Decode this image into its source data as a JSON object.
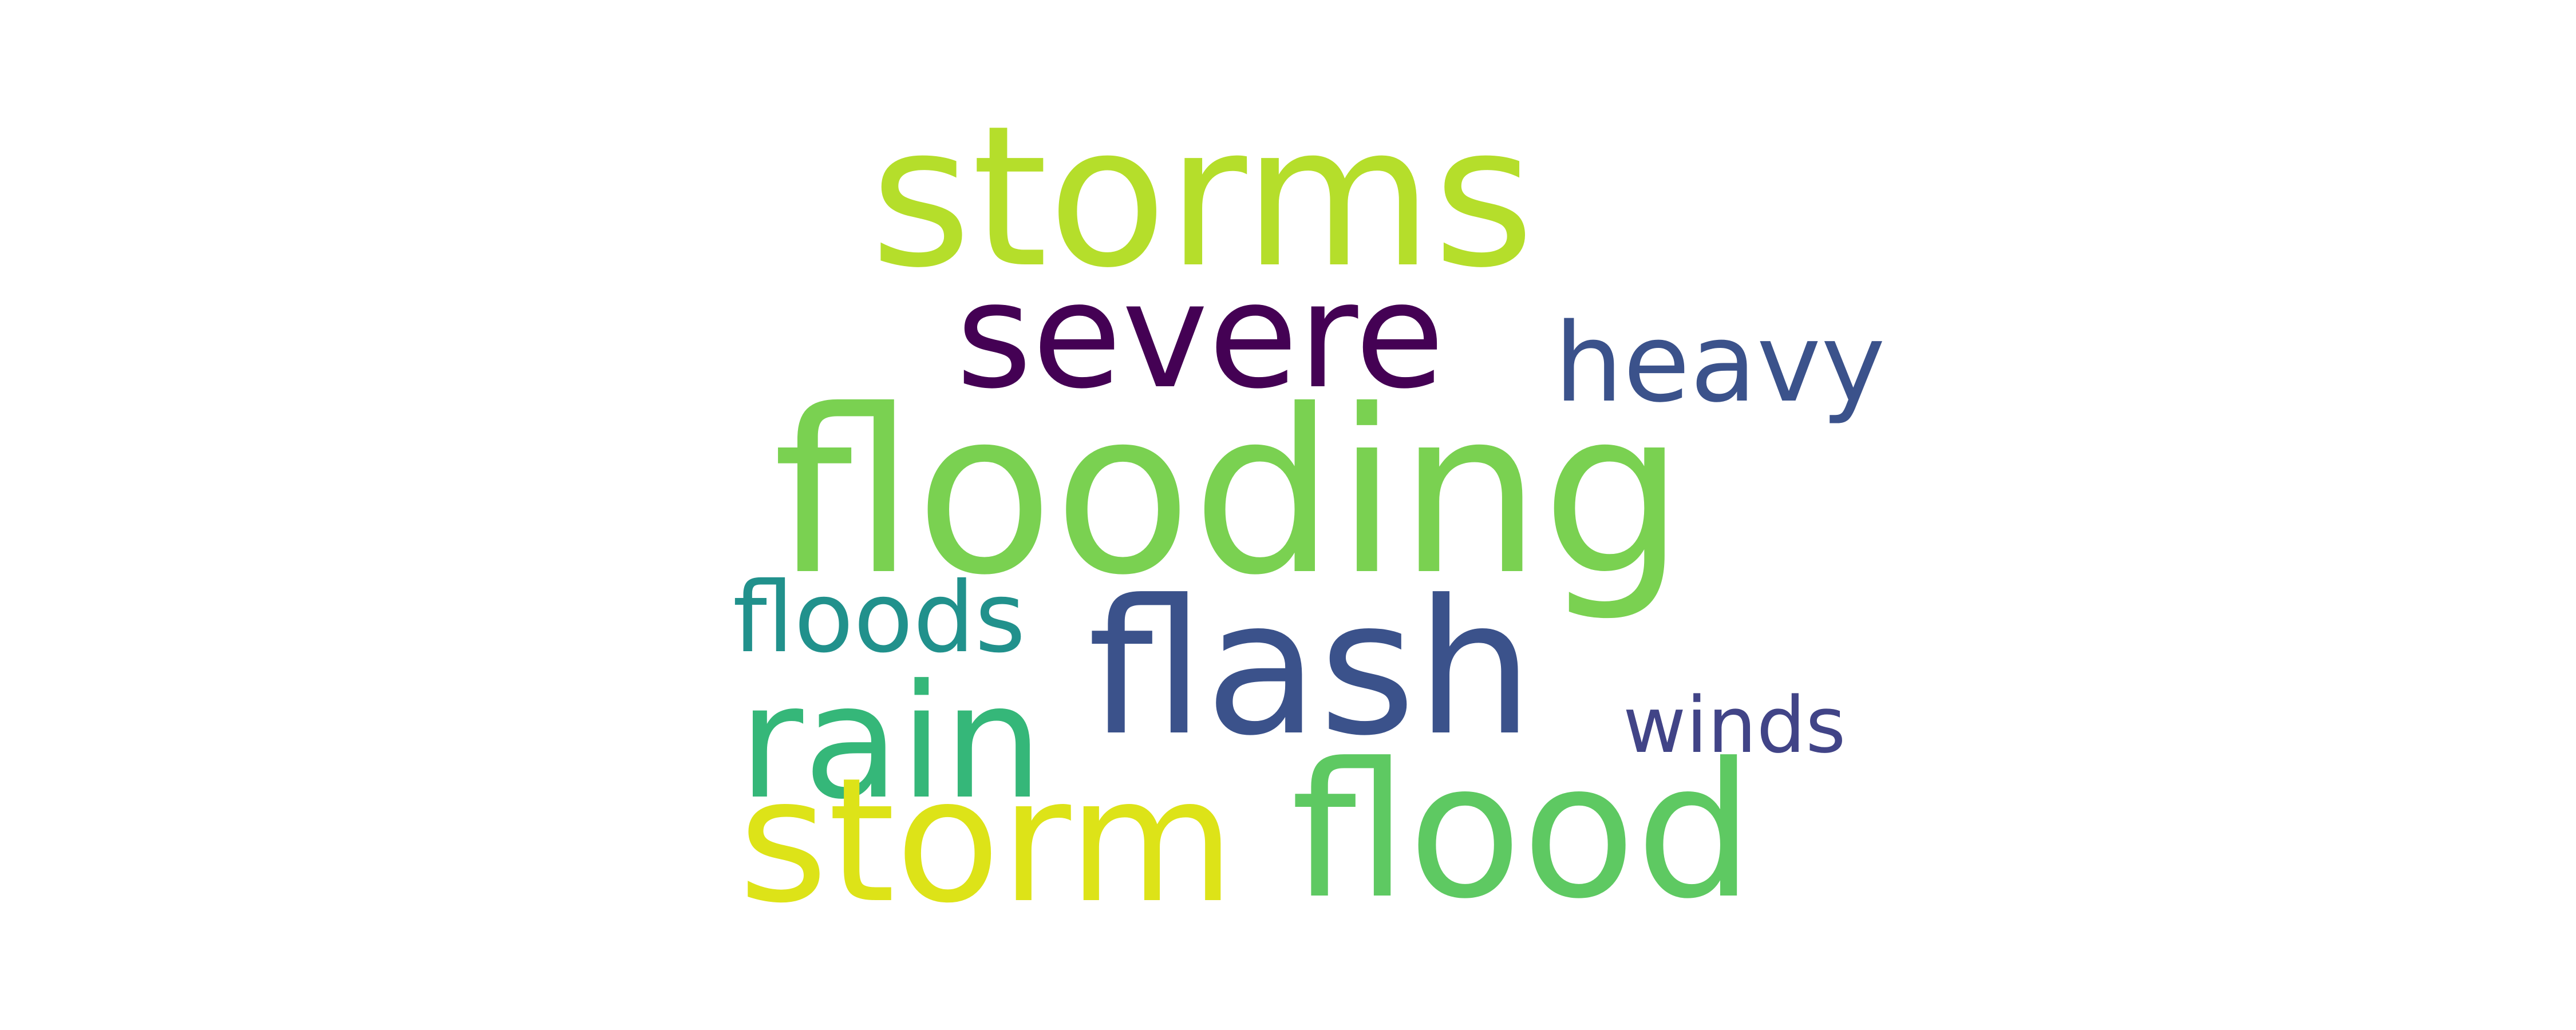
{
  "word_cloud": {
    "words": [
      {
        "text": "storms",
        "color": "#b5de2b"
      },
      {
        "text": "severe",
        "color": "#440154"
      },
      {
        "text": "heavy",
        "color": "#3b528b"
      },
      {
        "text": "flooding",
        "color": "#7ad151"
      },
      {
        "text": "floods",
        "color": "#21918c"
      },
      {
        "text": "flash",
        "color": "#3b528b"
      },
      {
        "text": "rain",
        "color": "#35b779"
      },
      {
        "text": "winds",
        "color": "#414487"
      },
      {
        "text": "storm",
        "color": "#dde318"
      },
      {
        "text": "flood",
        "color": "#5ec962"
      }
    ]
  }
}
